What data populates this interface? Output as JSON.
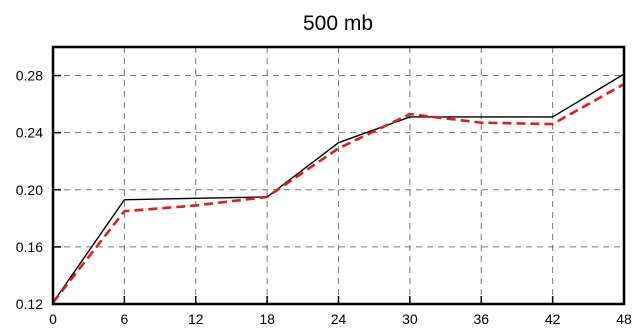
{
  "chart_data": {
    "type": "line",
    "title": "500 mb",
    "xlabel": "",
    "ylabel": "",
    "x": [
      0,
      6,
      12,
      18,
      24,
      30,
      36,
      42,
      48
    ],
    "xlim": [
      0,
      48
    ],
    "ylim": [
      0.12,
      0.3
    ],
    "xticks": [
      0,
      6,
      12,
      18,
      24,
      30,
      36,
      42,
      48
    ],
    "xtick_labels": [
      "0",
      "6",
      "12",
      "18",
      "24",
      "30",
      "36",
      "42",
      "48"
    ],
    "yticks": [
      0.12,
      0.16,
      0.2,
      0.24,
      0.28
    ],
    "ytick_labels": [
      "0.12",
      "0.16",
      "0.20",
      "0.24",
      "0.28"
    ],
    "grid": true,
    "series": [
      {
        "values": [
          0.121,
          0.193,
          0.194,
          0.195,
          0.233,
          0.251,
          0.251,
          0.251,
          0.281
        ],
        "color": "#000000",
        "style": "solid"
      },
      {
        "values": [
          0.121,
          0.185,
          0.189,
          0.195,
          0.229,
          0.253,
          0.247,
          0.246,
          0.274
        ],
        "color": "#d42020",
        "style": "dashed"
      }
    ]
  }
}
